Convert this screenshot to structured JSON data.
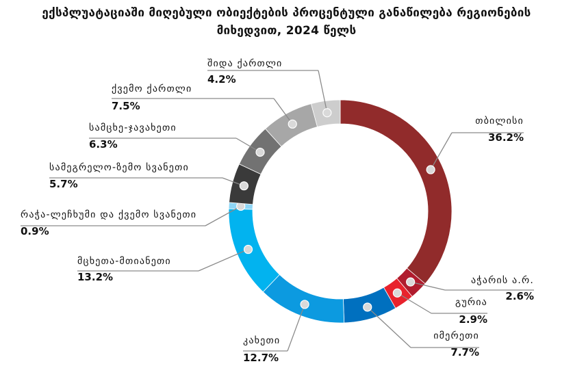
{
  "chart_data": {
    "type": "pie",
    "title_line1": "ექსპლუატაციაში მიღებული ობიექტების პროცენტული განაწილება რეგიონების",
    "title_line2": "მიხედვით, 2024 წელს",
    "slices": [
      {
        "name": "თბილისი",
        "value": 36.2,
        "value_label": "36.2%",
        "color": "#912b2b"
      },
      {
        "name": "აჭარის ა.რ.",
        "value": 2.6,
        "value_label": "2.6%",
        "color": "#b01c2e"
      },
      {
        "name": "გურია",
        "value": 2.9,
        "value_label": "2.9%",
        "color": "#e8222d"
      },
      {
        "name": "იმერეთი",
        "value": 7.7,
        "value_label": "7.7%",
        "color": "#0070bf"
      },
      {
        "name": "კახეთი",
        "value": 12.7,
        "value_label": "12.7%",
        "color": "#0c9ae0"
      },
      {
        "name": "მცხეთა-მთიანეთი",
        "value": 13.2,
        "value_label": "13.2%",
        "color": "#02b3ef"
      },
      {
        "name": "რაჭა-ლეჩხუმი და ქვემო სვანეთი",
        "value": 0.9,
        "value_label": "0.9%",
        "color": "#8ed6f6"
      },
      {
        "name": "სამეგრელო-ზემო სვანეთი",
        "value": 5.7,
        "value_label": "5.7%",
        "color": "#3a3a3a"
      },
      {
        "name": "სამცხე-ჯავახეთი",
        "value": 6.3,
        "value_label": "6.3%",
        "color": "#727272"
      },
      {
        "name": "ქვემო ქართლი",
        "value": 7.5,
        "value_label": "7.5%",
        "color": "#a7a7a7"
      },
      {
        "name": "შიდა ქართლი",
        "value": 4.2,
        "value_label": "4.2%",
        "color": "#cdcdcd"
      }
    ]
  }
}
